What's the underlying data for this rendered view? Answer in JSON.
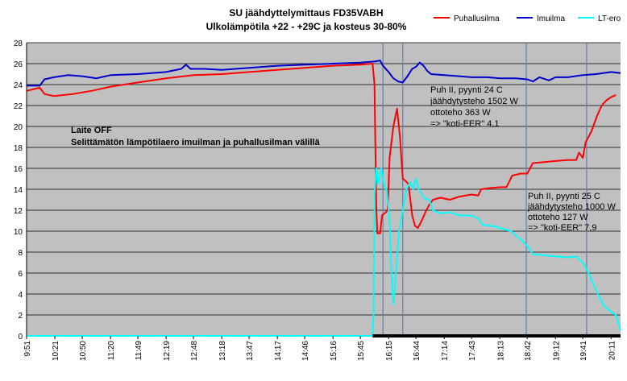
{
  "chart_data": {
    "type": "line",
    "title_line1": "SU jäähdyttelymittaus FD35VABH",
    "title_line2": "Ulkolämpötila +22 - +29C ja kosteus 30-80%",
    "xlabel": "",
    "ylabel": "",
    "ylim": [
      0,
      28
    ],
    "y_ticks": [
      0,
      2,
      4,
      6,
      8,
      10,
      12,
      14,
      16,
      18,
      20,
      22,
      24,
      26,
      28
    ],
    "x_range": [
      "9:51",
      "20:21"
    ],
    "x_ticks": [
      "9:51",
      "10:21",
      "10:50",
      "11:20",
      "11:49",
      "12:19",
      "12:48",
      "13:18",
      "13:47",
      "14:17",
      "14:46",
      "15:16",
      "15:45",
      "16:15",
      "16:44",
      "17:14",
      "17:43",
      "18:13",
      "18:42",
      "19:12",
      "19:41",
      "20:11"
    ],
    "grid": true,
    "legend_position": "top-right",
    "vertical_markers": [
      "16:09",
      "16:30",
      "18:41",
      "19:45"
    ],
    "series": [
      {
        "name": "Puhallusilma",
        "color": "#ff0000",
        "points": [
          [
            "9:51",
            23.4
          ],
          [
            "10:05",
            23.7
          ],
          [
            "10:10",
            23.1
          ],
          [
            "10:20",
            22.9
          ],
          [
            "10:40",
            23.1
          ],
          [
            "11:00",
            23.4
          ],
          [
            "11:20",
            23.8
          ],
          [
            "11:49",
            24.2
          ],
          [
            "12:19",
            24.6
          ],
          [
            "12:48",
            24.9
          ],
          [
            "13:18",
            25.0
          ],
          [
            "13:47",
            25.2
          ],
          [
            "14:17",
            25.4
          ],
          [
            "14:46",
            25.6
          ],
          [
            "15:16",
            25.8
          ],
          [
            "15:45",
            25.9
          ],
          [
            "15:58",
            26.0
          ],
          [
            "16:00",
            24.0
          ],
          [
            "16:01",
            18.0
          ],
          [
            "16:02",
            12.0
          ],
          [
            "16:03",
            9.8
          ],
          [
            "16:06",
            9.8
          ],
          [
            "16:08",
            11.5
          ],
          [
            "16:12",
            11.8
          ],
          [
            "16:14",
            12.0
          ],
          [
            "16:16",
            17.0
          ],
          [
            "16:20",
            20.0
          ],
          [
            "16:24",
            21.7
          ],
          [
            "16:27",
            19.0
          ],
          [
            "16:30",
            15.0
          ],
          [
            "16:33",
            14.8
          ],
          [
            "16:36",
            14.5
          ],
          [
            "16:40",
            11.5
          ],
          [
            "16:43",
            10.5
          ],
          [
            "16:46",
            10.3
          ],
          [
            "16:50",
            11.0
          ],
          [
            "16:54",
            11.8
          ],
          [
            "16:58",
            12.5
          ],
          [
            "17:02",
            13.0
          ],
          [
            "17:10",
            13.2
          ],
          [
            "17:20",
            13.0
          ],
          [
            "17:30",
            13.3
          ],
          [
            "17:43",
            13.5
          ],
          [
            "17:50",
            13.4
          ],
          [
            "17:53",
            14.0
          ],
          [
            "18:00",
            14.1
          ],
          [
            "18:13",
            14.2
          ],
          [
            "18:20",
            14.2
          ],
          [
            "18:26",
            15.3
          ],
          [
            "18:35",
            15.5
          ],
          [
            "18:42",
            15.5
          ],
          [
            "18:48",
            16.5
          ],
          [
            "19:00",
            16.6
          ],
          [
            "19:12",
            16.7
          ],
          [
            "19:25",
            16.8
          ],
          [
            "19:34",
            16.8
          ],
          [
            "19:37",
            17.5
          ],
          [
            "19:41",
            17.0
          ],
          [
            "19:44",
            18.5
          ],
          [
            "19:50",
            19.5
          ],
          [
            "19:56",
            21.0
          ],
          [
            "20:01",
            22.0
          ],
          [
            "20:06",
            22.5
          ],
          [
            "20:11",
            22.8
          ],
          [
            "20:16",
            23.0
          ]
        ]
      },
      {
        "name": "Imuilma",
        "color": "#0000cc",
        "points": [
          [
            "9:51",
            23.9
          ],
          [
            "10:05",
            23.9
          ],
          [
            "10:10",
            24.5
          ],
          [
            "10:20",
            24.7
          ],
          [
            "10:35",
            24.9
          ],
          [
            "10:50",
            24.8
          ],
          [
            "11:05",
            24.6
          ],
          [
            "11:20",
            24.9
          ],
          [
            "11:49",
            25.0
          ],
          [
            "12:19",
            25.2
          ],
          [
            "12:35",
            25.5
          ],
          [
            "12:40",
            25.9
          ],
          [
            "12:45",
            25.5
          ],
          [
            "13:00",
            25.5
          ],
          [
            "13:18",
            25.4
          ],
          [
            "13:47",
            25.6
          ],
          [
            "14:17",
            25.8
          ],
          [
            "14:46",
            25.9
          ],
          [
            "15:16",
            26.0
          ],
          [
            "15:45",
            26.1
          ],
          [
            "16:00",
            26.2
          ],
          [
            "16:06",
            26.3
          ],
          [
            "16:09",
            25.8
          ],
          [
            "16:15",
            25.2
          ],
          [
            "16:20",
            24.6
          ],
          [
            "16:25",
            24.3
          ],
          [
            "16:30",
            24.2
          ],
          [
            "16:35",
            24.8
          ],
          [
            "16:40",
            25.5
          ],
          [
            "16:44",
            25.7
          ],
          [
            "16:48",
            26.1
          ],
          [
            "16:52",
            25.8
          ],
          [
            "16:56",
            25.3
          ],
          [
            "17:00",
            25.0
          ],
          [
            "17:14",
            24.9
          ],
          [
            "17:30",
            24.8
          ],
          [
            "17:43",
            24.7
          ],
          [
            "18:00",
            24.7
          ],
          [
            "18:13",
            24.6
          ],
          [
            "18:30",
            24.6
          ],
          [
            "18:42",
            24.5
          ],
          [
            "18:48",
            24.3
          ],
          [
            "18:55",
            24.7
          ],
          [
            "19:05",
            24.4
          ],
          [
            "19:12",
            24.7
          ],
          [
            "19:25",
            24.7
          ],
          [
            "19:41",
            24.9
          ],
          [
            "19:55",
            25.0
          ],
          [
            "20:11",
            25.2
          ],
          [
            "20:21",
            25.1
          ]
        ]
      },
      {
        "name": "LT-ero",
        "color": "#00ffff",
        "points": [
          [
            "9:51",
            0
          ],
          [
            "15:58",
            0
          ],
          [
            "15:59",
            2.0
          ],
          [
            "16:00",
            13.5
          ],
          [
            "16:02",
            16.0
          ],
          [
            "16:04",
            14.5
          ],
          [
            "16:07",
            16.0
          ],
          [
            "16:10",
            14.5
          ],
          [
            "16:13",
            13.8
          ],
          [
            "16:16",
            11.0
          ],
          [
            "16:18",
            6.0
          ],
          [
            "16:20",
            3.0
          ],
          [
            "16:22",
            5.0
          ],
          [
            "16:26",
            10.0
          ],
          [
            "16:30",
            12.0
          ],
          [
            "16:34",
            14.0
          ],
          [
            "16:38",
            14.7
          ],
          [
            "16:41",
            14.0
          ],
          [
            "16:44",
            15.0
          ],
          [
            "16:47",
            14.0
          ],
          [
            "16:52",
            13.2
          ],
          [
            "16:58",
            13.0
          ],
          [
            "17:02",
            12.0
          ],
          [
            "17:10",
            11.7
          ],
          [
            "17:20",
            11.8
          ],
          [
            "17:30",
            11.5
          ],
          [
            "17:43",
            11.5
          ],
          [
            "17:50",
            11.2
          ],
          [
            "17:55",
            10.6
          ],
          [
            "18:05",
            10.5
          ],
          [
            "18:13",
            10.3
          ],
          [
            "18:25",
            10.0
          ],
          [
            "18:35",
            9.2
          ],
          [
            "18:42",
            8.6
          ],
          [
            "18:48",
            7.8
          ],
          [
            "19:00",
            7.7
          ],
          [
            "19:12",
            7.6
          ],
          [
            "19:25",
            7.5
          ],
          [
            "19:34",
            7.6
          ],
          [
            "19:37",
            7.3
          ],
          [
            "19:41",
            7.0
          ],
          [
            "19:46",
            6.2
          ],
          [
            "19:52",
            5.0
          ],
          [
            "19:58",
            3.8
          ],
          [
            "20:04",
            2.8
          ],
          [
            "20:11",
            2.3
          ],
          [
            "20:16",
            2.0
          ],
          [
            "20:21",
            0.5
          ]
        ]
      }
    ],
    "annotations": [
      {
        "id": "laite-off",
        "lines": [
          "Laite OFF",
          "Selittämätön lämpötilaero imuilman ja puhallusilman välillä"
        ],
        "bold": true
      },
      {
        "id": "puh-24",
        "lines": [
          "Puh II, pyynti 24 C",
          "jäähdytysteho 1502 W",
          "ottoteho 363 W",
          "=> \"koti-EER\" 4,1"
        ],
        "bold": false
      },
      {
        "id": "puh-25",
        "lines": [
          "Puh II, pyynti 25 C",
          "jäähdytysteho 1000 W",
          "ottoteho 127 W",
          "=> \"koti-EER\" 7,9"
        ],
        "bold": false
      }
    ]
  }
}
